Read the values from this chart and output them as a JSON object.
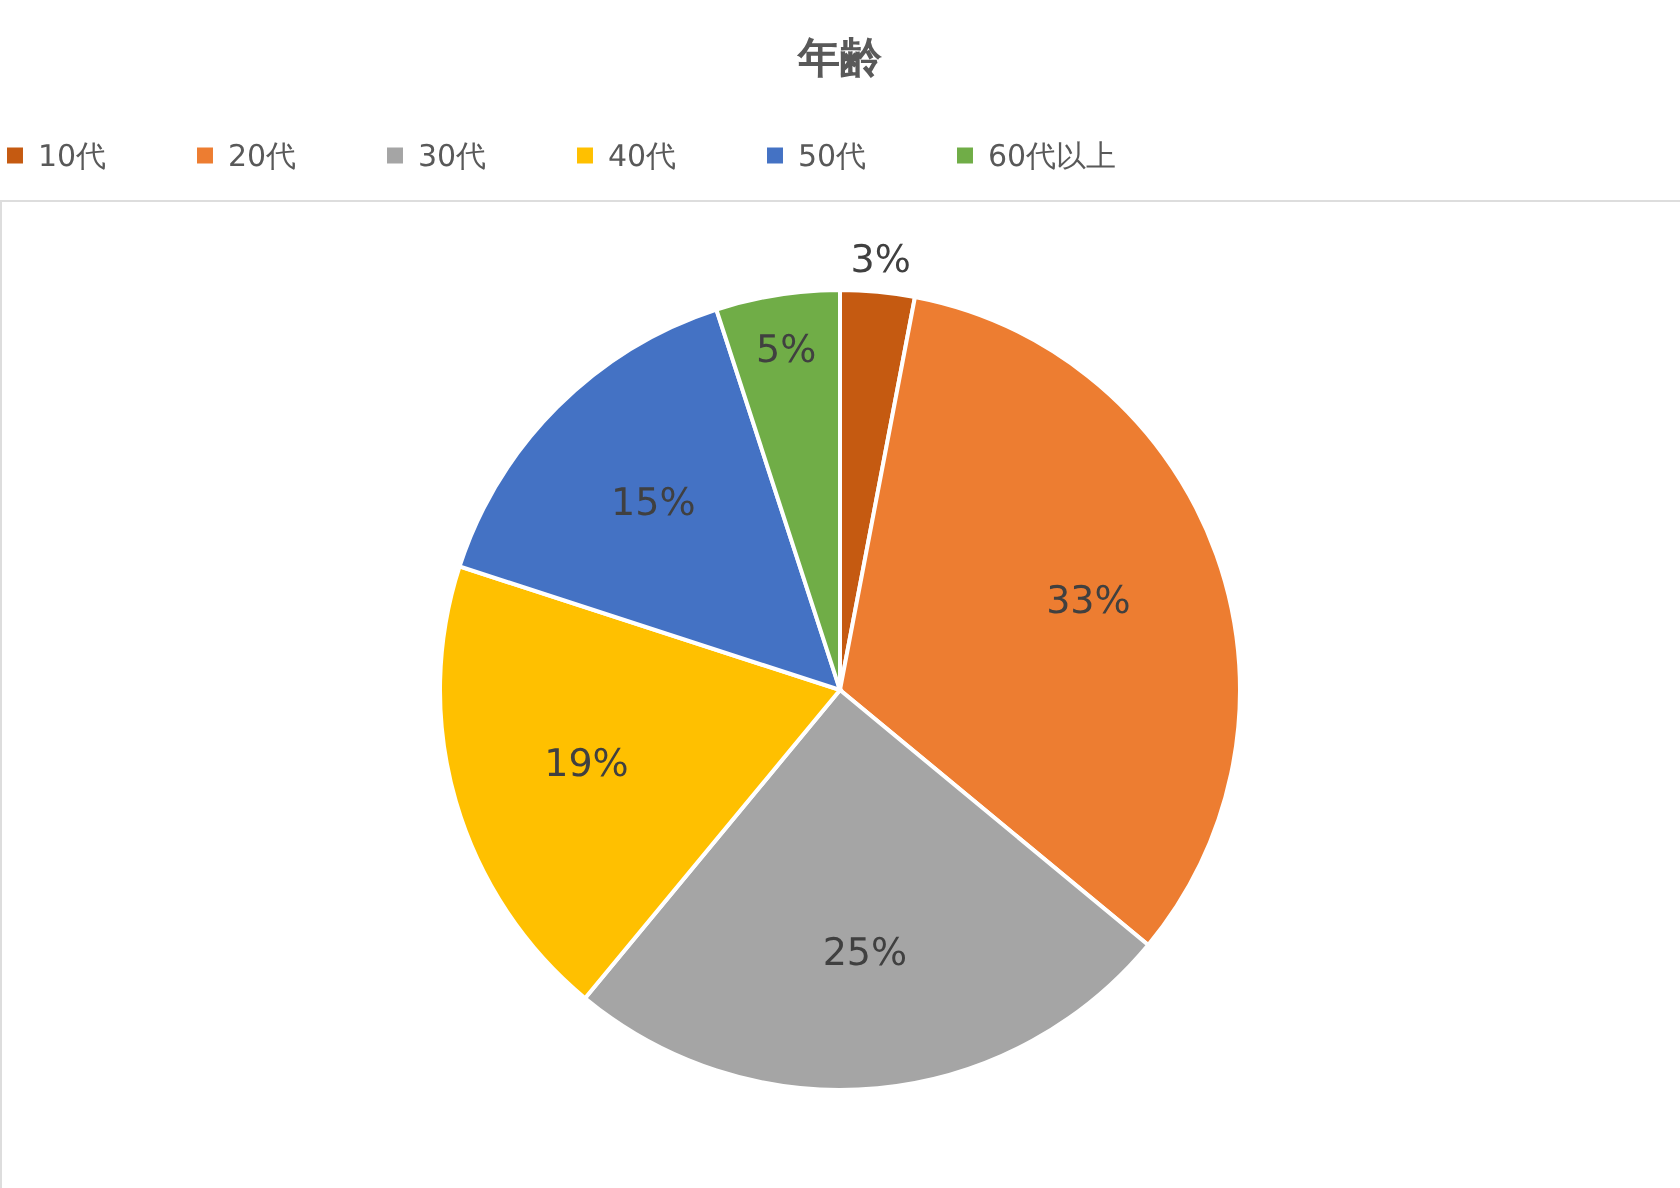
{
  "chart_data": {
    "type": "pie",
    "title": "年齢",
    "categories": [
      "10代",
      "20代",
      "30代",
      "40代",
      "50代",
      "60代以上"
    ],
    "values": [
      3,
      33,
      25,
      19,
      15,
      5
    ],
    "colors": [
      "#c55a11",
      "#ed7d31",
      "#a5a5a5",
      "#ffc000",
      "#4472c4",
      "#70ad47"
    ],
    "value_labels": [
      "3%",
      "33%",
      "25%",
      "19%",
      "15%",
      "5%"
    ],
    "legend": "top"
  }
}
